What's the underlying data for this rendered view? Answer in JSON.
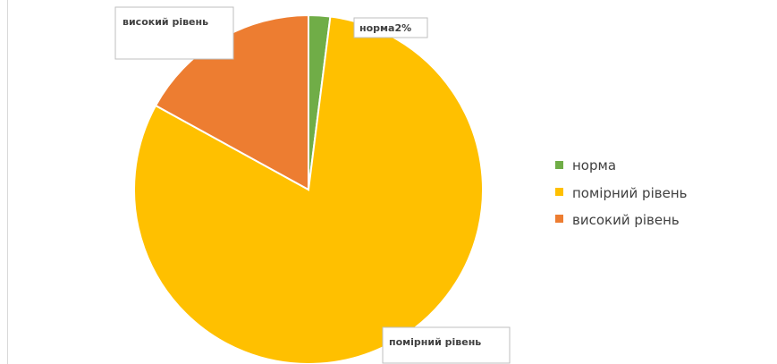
{
  "chart_data": {
    "type": "pie",
    "categories": [
      "норма",
      "помірний рівень",
      "високий рівень"
    ],
    "values": [
      2,
      81,
      17
    ],
    "colors": [
      "#70ad47",
      "#ffc000",
      "#ed7d31"
    ],
    "data_labels": [
      "норма2%",
      "помірний рівень",
      "високий рівень"
    ],
    "legend": {
      "position": "right",
      "entries": [
        "норма",
        "помірний рівень",
        "високий рівень"
      ]
    }
  }
}
